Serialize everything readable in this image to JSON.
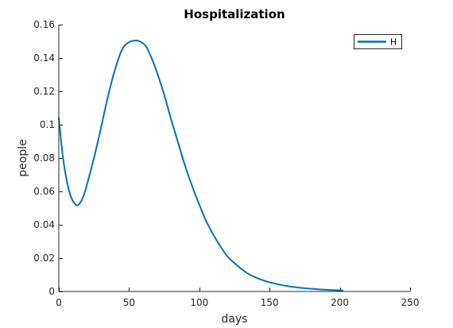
{
  "chart_data": {
    "type": "line",
    "title": "Hospitalization",
    "xlabel": "days",
    "ylabel": "people",
    "xlim": [
      0,
      250
    ],
    "ylim": [
      0,
      0.16
    ],
    "xticks": [
      0,
      50,
      100,
      150,
      200,
      250
    ],
    "yticks": [
      0,
      0.02,
      0.04,
      0.06,
      0.08,
      0.1,
      0.12,
      0.14,
      0.16
    ],
    "xtick_labels": [
      "0",
      "50",
      "100",
      "150",
      "200",
      "250"
    ],
    "ytick_labels": [
      "0",
      "0.02",
      "0.04",
      "0.06",
      "0.08",
      "0.1",
      "0.12",
      "0.14",
      "0.16"
    ],
    "grid": false,
    "legend": {
      "position": "top-right",
      "entries": [
        "H"
      ]
    },
    "series": [
      {
        "name": "H",
        "color": "#0072BD",
        "x": [
          0,
          3,
          6,
          9,
          12,
          14,
          17,
          20,
          25,
          30,
          35,
          40,
          45,
          50,
          55,
          58,
          62,
          66,
          70,
          75,
          80,
          85,
          90,
          95,
          100,
          105,
          110,
          115,
          120,
          125,
          130,
          135,
          140,
          145,
          150,
          160,
          170,
          180,
          190,
          200,
          202
        ],
        "y": [
          0.104,
          0.08,
          0.065,
          0.056,
          0.052,
          0.052,
          0.056,
          0.064,
          0.08,
          0.098,
          0.117,
          0.133,
          0.145,
          0.1495,
          0.1505,
          0.1498,
          0.147,
          0.14,
          0.131,
          0.118,
          0.103,
          0.089,
          0.075,
          0.063,
          0.052,
          0.042,
          0.034,
          0.027,
          0.021,
          0.017,
          0.0135,
          0.0105,
          0.0085,
          0.0068,
          0.0055,
          0.0036,
          0.0024,
          0.0016,
          0.001,
          0.0007,
          0.0006
        ]
      }
    ]
  }
}
